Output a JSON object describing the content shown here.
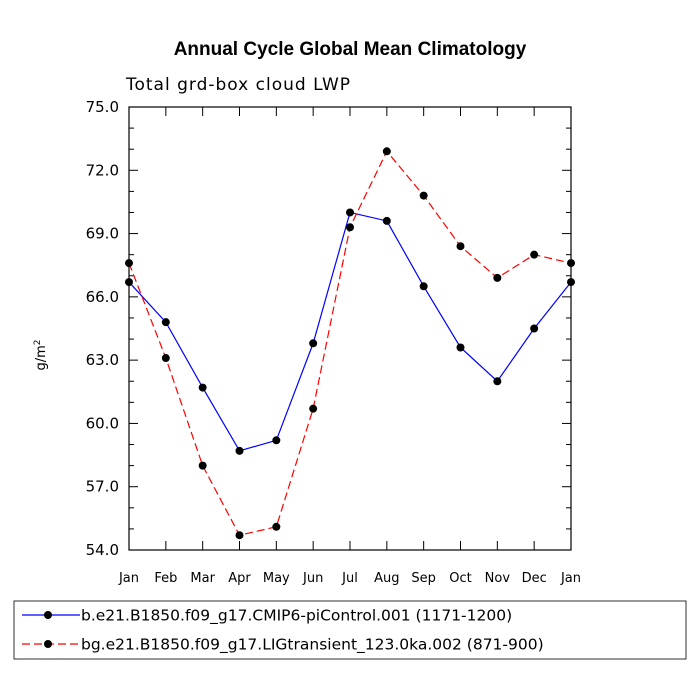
{
  "chart_data": {
    "type": "line",
    "title": "Annual Cycle Global Mean Climatology",
    "subtitle": "Total grd-box cloud LWP",
    "ylabel": "g/m",
    "ylabel_superscript": "2",
    "categories": [
      "Jan",
      "Feb",
      "Mar",
      "Apr",
      "May",
      "Jun",
      "Jul",
      "Aug",
      "Sep",
      "Oct",
      "Nov",
      "Dec",
      "Jan"
    ],
    "ylim": [
      54.0,
      75.0
    ],
    "yticks": [
      "54.0",
      "57.0",
      "60.0",
      "63.0",
      "66.0",
      "69.0",
      "72.0",
      "75.0"
    ],
    "series": [
      {
        "name": "b.e21.B1850.f09_g17.CMIP6-piControl.001 (1171-1200)",
        "color": "#0000ff",
        "dash": "solid",
        "values": [
          66.7,
          64.8,
          61.7,
          58.7,
          59.2,
          63.8,
          70.0,
          69.6,
          66.5,
          63.6,
          62.0,
          64.5,
          66.7
        ]
      },
      {
        "name": "bg.e21.B1850.f09_g17.LIGtransient_123.0ka.002 (871-900)",
        "color": "#ff0000",
        "dash": "dashed",
        "values": [
          67.6,
          63.1,
          58.0,
          54.7,
          55.1,
          60.7,
          69.3,
          72.9,
          70.8,
          68.4,
          66.9,
          68.0,
          67.6
        ]
      }
    ],
    "legend_position": "bottom"
  }
}
